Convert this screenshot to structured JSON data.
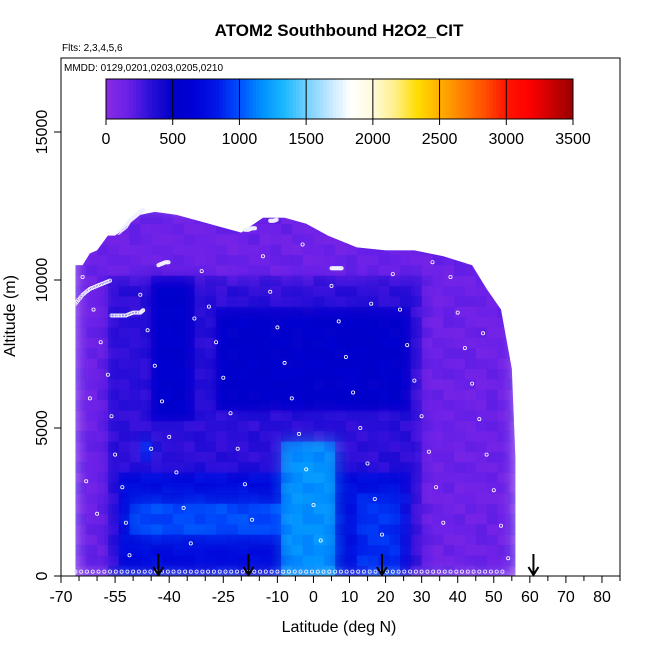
{
  "chart_data": {
    "type": "heatmap",
    "title": "ATOM2 Southbound H2O2_CIT",
    "subtitle_flights": "Flts: 2,3,4,5,6",
    "subtitle_dates": "MMDD: 0129,0201,0203,0205,0210",
    "xlabel": "Latitude (deg N)",
    "ylabel": "Altitude (m)",
    "xlim": [
      -70,
      85
    ],
    "ylim": [
      0,
      17500
    ],
    "x_ticks": [
      -70,
      -55,
      -40,
      -25,
      -10,
      0,
      10,
      20,
      30,
      40,
      50,
      60,
      70,
      80
    ],
    "x_tick_labels": [
      "-70",
      "-55",
      "-40",
      "-25",
      "-10",
      "0",
      "10",
      "20",
      "30",
      "40",
      "50",
      "60",
      "70",
      "80"
    ],
    "x_minor_ticks": [
      -65,
      -60,
      -50,
      -45,
      -35,
      -30,
      -20,
      -15,
      -5,
      5,
      15,
      25,
      35,
      45,
      55,
      65,
      75,
      85
    ],
    "y_ticks": [
      0,
      5000,
      10000,
      15000
    ],
    "y_tick_labels": [
      "0",
      "5000",
      "10000",
      "15000"
    ],
    "colorbar": {
      "range": [
        0,
        3500
      ],
      "ticks": [
        0,
        500,
        1000,
        1500,
        2000,
        2500,
        3000,
        3500
      ],
      "tick_labels": [
        "0",
        "500",
        "1000",
        "1500",
        "2000",
        "2500",
        "3000",
        "3500"
      ],
      "colors": [
        "#8a2be2",
        "#6a20e8",
        "#2a10d8",
        "#0000c8",
        "#0000d8",
        "#0018e8",
        "#0050ff",
        "#0090ff",
        "#1ab8ff",
        "#70d0ff",
        "#bfe6ff",
        "#ffffff",
        "#fffadc",
        "#ffef88",
        "#ffdd00",
        "#ffb000",
        "#ff8000",
        "#ff5000",
        "#ff1500",
        "#ff0000",
        "#cc0000",
        "#990000"
      ]
    },
    "data_extent": {
      "lat_min": -66,
      "lat_max": 56,
      "alt_max": 12500
    },
    "profile_top_m": [
      [
        -66,
        10500
      ],
      [
        -64,
        10500
      ],
      [
        -62,
        10900
      ],
      [
        -60,
        11000
      ],
      [
        -57,
        11500
      ],
      [
        -55,
        11500
      ],
      [
        -52,
        11800
      ],
      [
        -48,
        12200
      ],
      [
        -44,
        12300
      ],
      [
        -38,
        12200
      ],
      [
        -32,
        12000
      ],
      [
        -26,
        11800
      ],
      [
        -20,
        11600
      ],
      [
        -14,
        12100
      ],
      [
        -8,
        12100
      ],
      [
        -2,
        11900
      ],
      [
        4,
        11500
      ],
      [
        12,
        11100
      ],
      [
        20,
        11000
      ],
      [
        28,
        11000
      ],
      [
        36,
        10800
      ],
      [
        44,
        10500
      ],
      [
        48,
        9700
      ],
      [
        52,
        9000
      ],
      [
        55,
        7000
      ],
      [
        56,
        4000
      ],
      [
        56,
        0
      ]
    ],
    "regions": [
      {
        "lat": [
          -66,
          56
        ],
        "alt": [
          0,
          12500
        ],
        "value": 150
      },
      {
        "lat": [
          -58,
          30
        ],
        "alt": [
          0,
          10000
        ],
        "value": 330
      },
      {
        "lat": [
          -46,
          -33
        ],
        "alt": [
          5200,
          10200
        ],
        "value": 560
      },
      {
        "lat": [
          -28,
          27
        ],
        "alt": [
          5500,
          9000
        ],
        "value": 540
      },
      {
        "lat": [
          -55,
          26
        ],
        "alt": [
          0,
          3600
        ],
        "value": 720
      },
      {
        "lat": [
          -50,
          0
        ],
        "alt": [
          1300,
          2600
        ],
        "value": 980
      },
      {
        "lat": [
          -8,
          6
        ],
        "alt": [
          0,
          4500
        ],
        "value": 1180
      },
      {
        "lat": [
          12,
          24
        ],
        "alt": [
          0,
          2800
        ],
        "value": 900
      },
      {
        "lat": [
          -48,
          -44
        ],
        "alt": [
          4000,
          4600
        ],
        "value": 900
      }
    ],
    "flight_tracks": [
      {
        "lat": [
          -66,
          -64,
          -62,
          -60,
          -58,
          -56
        ],
        "alt": [
          9200,
          9500,
          9700,
          9800,
          9900,
          10000
        ]
      },
      {
        "lat": [
          -56,
          -54,
          -52,
          -50,
          -48,
          -47
        ],
        "alt": [
          8800,
          8800,
          8800,
          8900,
          8900,
          9000
        ]
      },
      {
        "lat": [
          -54,
          -52,
          -51,
          -50,
          -49,
          -48,
          -47
        ],
        "alt": [
          11600,
          11800,
          12000,
          12100,
          12200,
          12300,
          12400
        ]
      },
      {
        "lat": [
          -43,
          -42,
          -41,
          -40
        ],
        "alt": [
          10500,
          10550,
          10600,
          10600
        ]
      },
      {
        "lat": [
          -19,
          -18,
          -17,
          -16
        ],
        "alt": [
          11700,
          11700,
          11750,
          11750
        ]
      },
      {
        "lat": [
          -12,
          -11,
          -10
        ],
        "alt": [
          12000,
          12000,
          12050
        ]
      },
      {
        "lat": [
          5,
          6,
          7,
          8
        ],
        "alt": [
          10400,
          10400,
          10400,
          10400
        ]
      },
      {
        "lat": [
          -66,
          -58,
          -50,
          -42,
          -34,
          -26,
          -18,
          -10,
          -2,
          6,
          14,
          22,
          30,
          38,
          46,
          54
        ],
        "alt": [
          150,
          150,
          150,
          150,
          150,
          150,
          150,
          150,
          150,
          150,
          150,
          150,
          150,
          150,
          150,
          150
        ]
      }
    ],
    "scatter_points": [
      [
        -64,
        10100
      ],
      [
        -61,
        9000
      ],
      [
        -59,
        7900
      ],
      [
        -57,
        6800
      ],
      [
        -56,
        5400
      ],
      [
        -55,
        4100
      ],
      [
        -53,
        3000
      ],
      [
        -52,
        1800
      ],
      [
        -51,
        700
      ],
      [
        -48,
        9500
      ],
      [
        -46,
        8300
      ],
      [
        -44,
        7100
      ],
      [
        -42,
        5900
      ],
      [
        -40,
        4700
      ],
      [
        -38,
        3500
      ],
      [
        -36,
        2300
      ],
      [
        -34,
        1100
      ],
      [
        -31,
        10300
      ],
      [
        -29,
        9100
      ],
      [
        -27,
        7900
      ],
      [
        -25,
        6700
      ],
      [
        -23,
        5500
      ],
      [
        -21,
        4300
      ],
      [
        -19,
        3100
      ],
      [
        -17,
        1900
      ],
      [
        -14,
        10800
      ],
      [
        -12,
        9600
      ],
      [
        -10,
        8400
      ],
      [
        -8,
        7200
      ],
      [
        -6,
        6000
      ],
      [
        -4,
        4800
      ],
      [
        -2,
        3600
      ],
      [
        0,
        2400
      ],
      [
        2,
        1200
      ],
      [
        5,
        9800
      ],
      [
        7,
        8600
      ],
      [
        9,
        7400
      ],
      [
        11,
        6200
      ],
      [
        13,
        5000
      ],
      [
        15,
        3800
      ],
      [
        17,
        2600
      ],
      [
        19,
        1400
      ],
      [
        22,
        10200
      ],
      [
        24,
        9000
      ],
      [
        26,
        7800
      ],
      [
        28,
        6600
      ],
      [
        30,
        5400
      ],
      [
        32,
        4200
      ],
      [
        34,
        3000
      ],
      [
        36,
        1800
      ],
      [
        38,
        10100
      ],
      [
        40,
        8900
      ],
      [
        42,
        7700
      ],
      [
        44,
        6500
      ],
      [
        46,
        5300
      ],
      [
        48,
        4100
      ],
      [
        50,
        2900
      ],
      [
        52,
        1700
      ],
      [
        54,
        600
      ],
      [
        -63,
        3200
      ],
      [
        -60,
        2100
      ],
      [
        -62,
        6000
      ],
      [
        -45,
        4300
      ],
      [
        -33,
        8700
      ],
      [
        -3,
        11200
      ],
      [
        16,
        9200
      ],
      [
        33,
        10600
      ],
      [
        47,
        8200
      ]
    ],
    "arrows_lat": [
      -43,
      -18,
      19,
      61
    ]
  }
}
